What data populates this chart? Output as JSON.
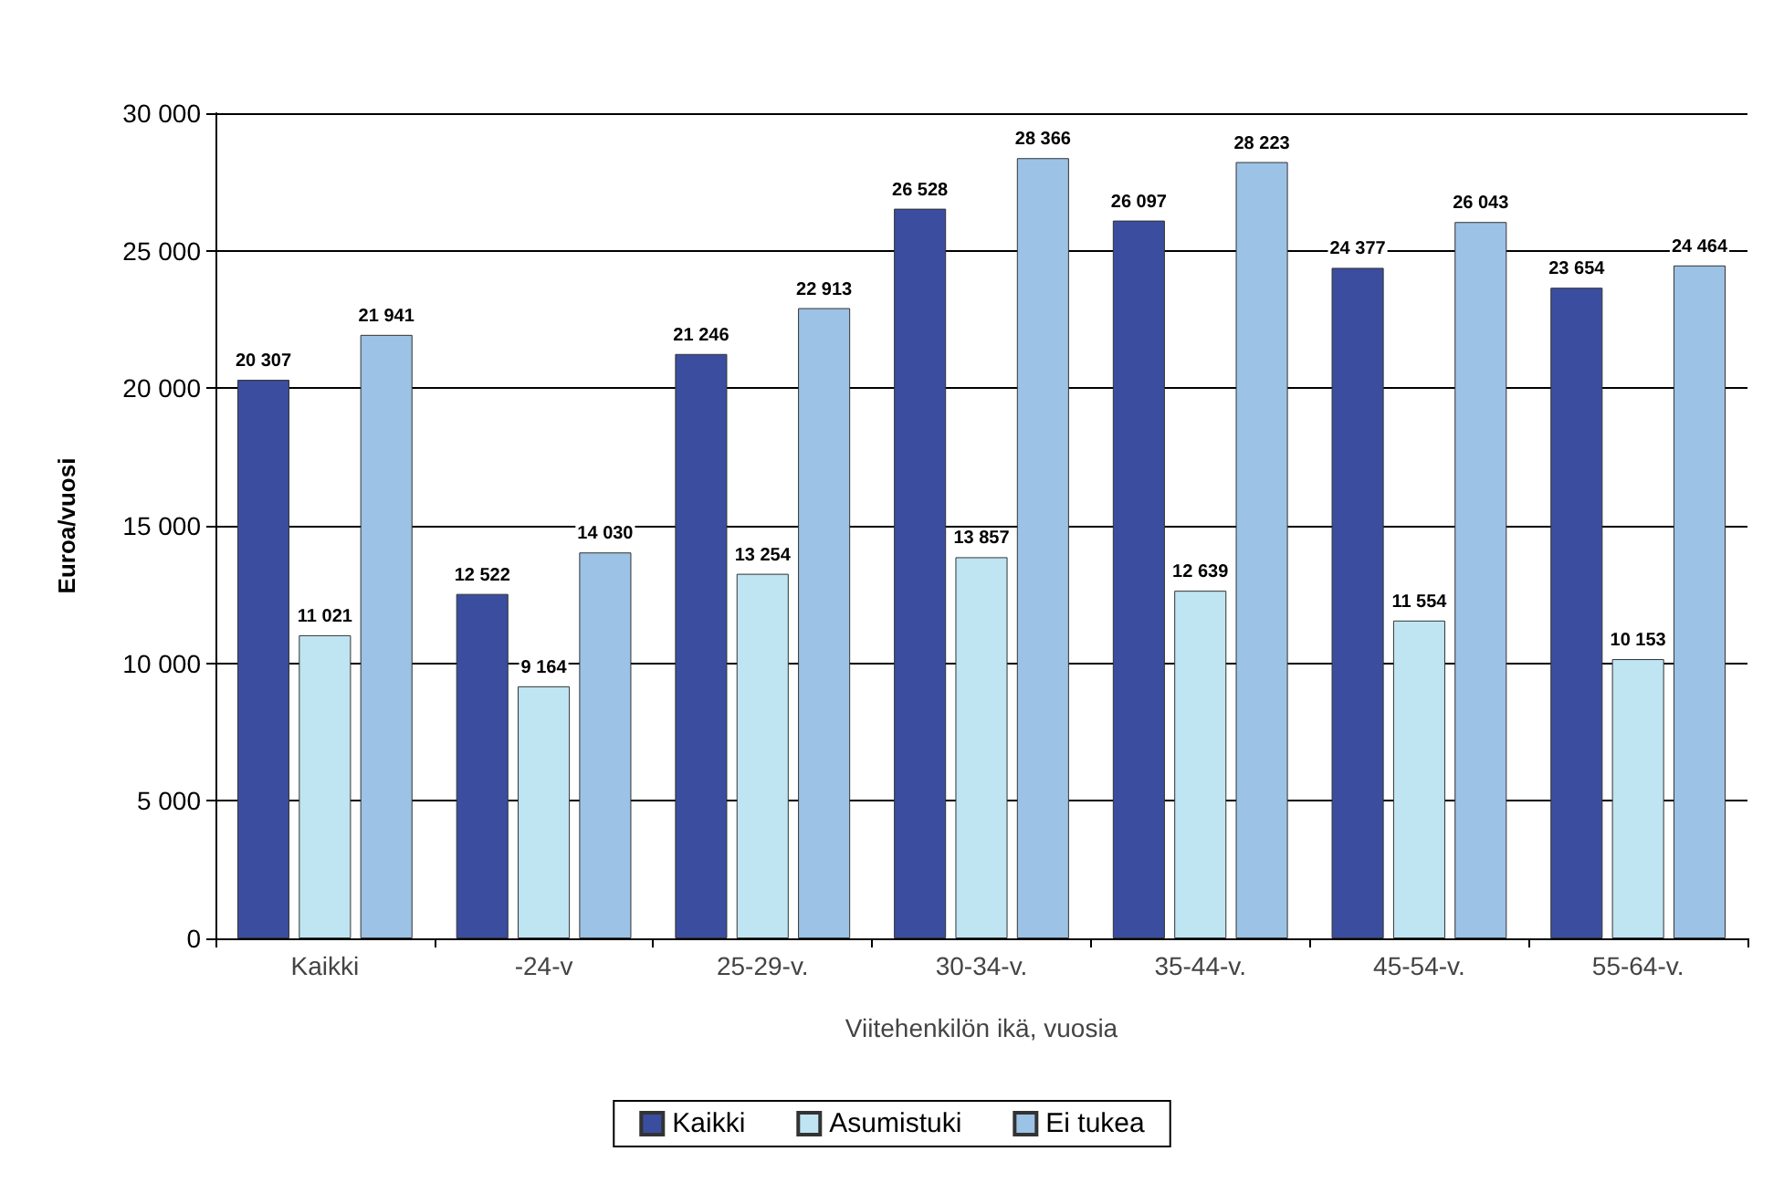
{
  "chart_data": {
    "type": "bar",
    "xlabel": "Viitehenkilön ikä, vuosia",
    "ylabel": "Euroa/vuosi",
    "categories": [
      "Kaikki",
      "-24-v",
      "25-29-v.",
      "30-34-v.",
      "35-44-v.",
      "45-54-v.",
      "55-64-v."
    ],
    "series": [
      {
        "name": "Kaikki",
        "color": "#3a4d9f",
        "values": [
          20307,
          12522,
          21246,
          26528,
          26097,
          24377,
          23654
        ],
        "value_labels": [
          "20 307",
          "12 522",
          "21 246",
          "26 528",
          "26 097",
          "24 377",
          "23 654"
        ]
      },
      {
        "name": "Asumistuki",
        "color": "#bfe4f2",
        "values": [
          11021,
          9164,
          13254,
          13857,
          12639,
          11554,
          10153
        ],
        "value_labels": [
          "11 021",
          "9 164",
          "13 254",
          "13 857",
          "12 639",
          "11 554",
          "10 153"
        ]
      },
      {
        "name": "Ei tukea",
        "color": "#9cc2e6",
        "values": [
          21941,
          14030,
          22913,
          28366,
          28223,
          26043,
          24464
        ],
        "value_labels": [
          "21 941",
          "14 030",
          "22 913",
          "28 366",
          "28 223",
          "26 043",
          "24 464"
        ]
      }
    ],
    "ylim": [
      0,
      30000
    ],
    "yticks": [
      {
        "value": 0,
        "label": "0"
      },
      {
        "value": 5000,
        "label": "5 000"
      },
      {
        "value": 10000,
        "label": "10 000"
      },
      {
        "value": 15000,
        "label": "15 000"
      },
      {
        "value": 20000,
        "label": "20 000"
      },
      {
        "value": 25000,
        "label": "25 000"
      },
      {
        "value": 30000,
        "label": "30 000"
      }
    ],
    "grid": "y",
    "legend": "bottom"
  }
}
